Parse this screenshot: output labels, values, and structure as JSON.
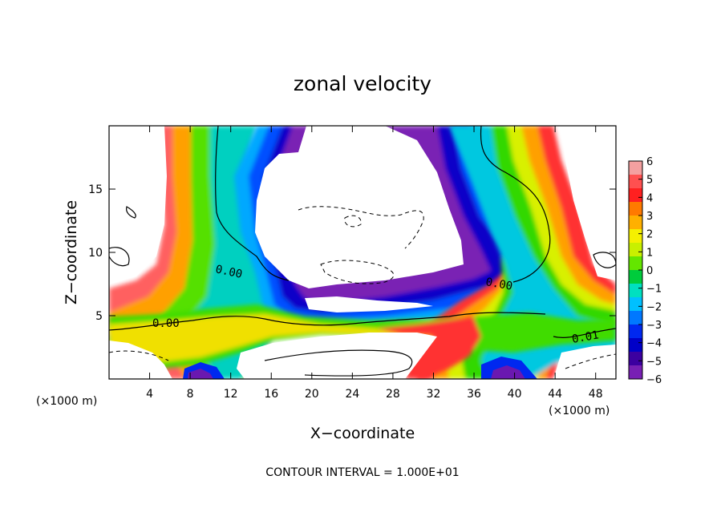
{
  "chart_data": {
    "type": "heatmap",
    "title": "zonal velocity",
    "xlabel": "X−coordinate",
    "ylabel": "Z−coordinate",
    "x_unit_left": "(×1000 m)",
    "x_unit_right": "(×1000 m)",
    "xlim": [
      0,
      50
    ],
    "ylim": [
      0,
      20
    ],
    "x_ticks": [
      4,
      8,
      12,
      16,
      20,
      24,
      28,
      32,
      36,
      40,
      44,
      48
    ],
    "x_tick_labels": [
      "4",
      "8",
      "12",
      "16",
      "20",
      "24",
      "28",
      "32",
      "36",
      "40",
      "44",
      "48"
    ],
    "y_ticks": [
      5,
      10,
      15
    ],
    "y_tick_labels": [
      "5",
      "10",
      "15"
    ],
    "colorbar": {
      "min": -6,
      "max": 6,
      "ticks": [
        "6",
        "5",
        "4",
        "3",
        "2",
        "1",
        "0",
        "−1",
        "−2",
        "−3",
        "−4",
        "−5",
        "−6"
      ],
      "colors": [
        "#f4a0a0",
        "#ff5050",
        "#ff2020",
        "#ff7a00",
        "#ffb000",
        "#f5f000",
        "#c8f000",
        "#64e600",
        "#00cc3c",
        "#00e0c0",
        "#00c0ff",
        "#0078ff",
        "#0028f0",
        "#0000c8",
        "#3c00a0",
        "#7820b4"
      ]
    },
    "contour_labels": [
      "0.00",
      "0.00",
      "0.00",
      "0.01"
    ],
    "footer": "CONTOUR INTERVAL = 1.000E+01"
  }
}
